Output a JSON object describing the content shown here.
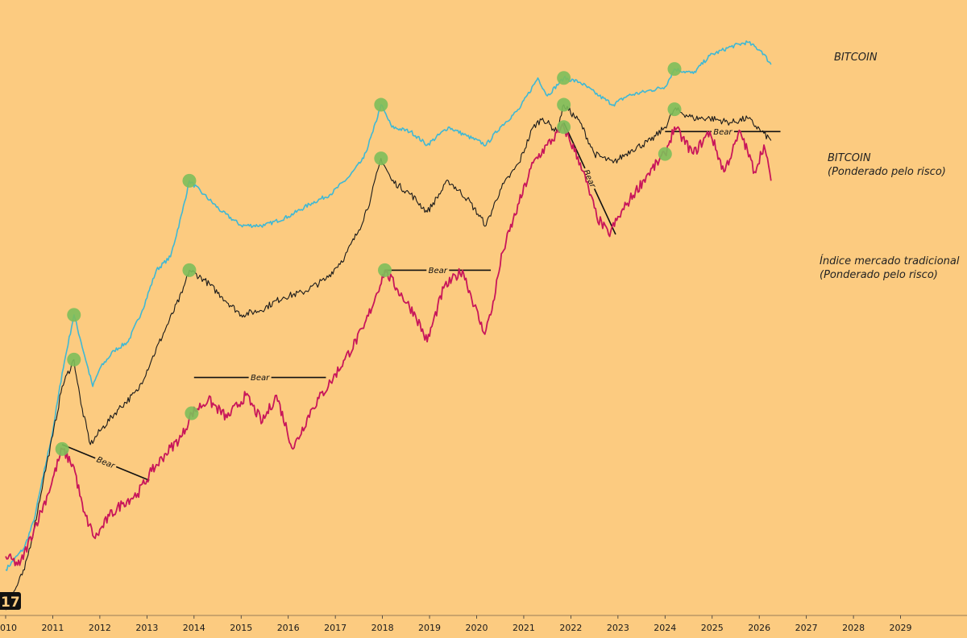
{
  "colors": {
    "background": "#FCCB80",
    "bitcoin": "#3FB8D4",
    "bitcoin_risk": "#1a1a1a",
    "traditional": "#C8165A",
    "marker": "#7DBE5A"
  },
  "chart_data": {
    "type": "line",
    "title": "",
    "xlabel": "",
    "ylabel": "",
    "xlim": [
      2010,
      2029.6
    ],
    "y_scale": "log (relative, arbitrary units)",
    "x_ticks": [
      "2010",
      "2011",
      "2012",
      "2013",
      "2014",
      "2015",
      "2016",
      "2017",
      "2018",
      "2019",
      "2020",
      "2021",
      "2022",
      "2023",
      "2024",
      "2025",
      "2026",
      "2027",
      "2028",
      "2029"
    ],
    "legend": [
      {
        "series": "bitcoin",
        "lines": [
          "BITCOIN"
        ]
      },
      {
        "series": "bitcoin_risk",
        "lines": [
          "BITCOIN",
          "(Ponderado pelo risco)"
        ]
      },
      {
        "series": "traditional",
        "lines": [
          "Índice mercado tradicional",
          "(Ponderado pelo risco)"
        ]
      }
    ],
    "series": [
      {
        "name": "BITCOIN",
        "key": "bitcoin",
        "points": [
          [
            2010.0,
            5
          ],
          [
            2010.4,
            10
          ],
          [
            2010.6,
            16
          ],
          [
            2010.8,
            26
          ],
          [
            2011.0,
            36
          ],
          [
            2011.2,
            49
          ],
          [
            2011.45,
            62
          ],
          [
            2011.6,
            56
          ],
          [
            2011.85,
            46
          ],
          [
            2012.0,
            50
          ],
          [
            2012.3,
            54
          ],
          [
            2012.6,
            56
          ],
          [
            2012.9,
            63
          ],
          [
            2013.2,
            72
          ],
          [
            2013.5,
            75
          ],
          [
            2013.75,
            85
          ],
          [
            2013.9,
            92
          ],
          [
            2014.2,
            89
          ],
          [
            2014.6,
            85
          ],
          [
            2015.0,
            82
          ],
          [
            2015.5,
            82
          ],
          [
            2016.0,
            84
          ],
          [
            2016.5,
            87
          ],
          [
            2016.9,
            89
          ],
          [
            2017.3,
            93
          ],
          [
            2017.6,
            97
          ],
          [
            2017.8,
            103
          ],
          [
            2017.97,
            109
          ],
          [
            2018.2,
            104
          ],
          [
            2018.6,
            103
          ],
          [
            2018.95,
            100
          ],
          [
            2019.4,
            104
          ],
          [
            2019.8,
            102
          ],
          [
            2020.2,
            100
          ],
          [
            2020.5,
            104
          ],
          [
            2020.9,
            108
          ],
          [
            2021.3,
            115
          ],
          [
            2021.5,
            111
          ],
          [
            2021.85,
            115
          ],
          [
            2022.2,
            114
          ],
          [
            2022.6,
            111
          ],
          [
            2022.9,
            109
          ],
          [
            2023.2,
            111
          ],
          [
            2023.6,
            112
          ],
          [
            2024.0,
            113
          ],
          [
            2024.2,
            117
          ],
          [
            2024.6,
            116
          ],
          [
            2024.95,
            120
          ],
          [
            2025.4,
            122
          ],
          [
            2025.75,
            123
          ],
          [
            2026.05,
            121
          ],
          [
            2026.25,
            118
          ]
        ]
      },
      {
        "name": "BITCOIN (Ponderado pelo risco)",
        "key": "bitcoin_risk",
        "points": [
          [
            2010.0,
            -4
          ],
          [
            2010.4,
            5
          ],
          [
            2010.6,
            14
          ],
          [
            2010.8,
            25
          ],
          [
            2011.0,
            35
          ],
          [
            2011.2,
            46
          ],
          [
            2011.45,
            52
          ],
          [
            2011.6,
            42
          ],
          [
            2011.8,
            33
          ],
          [
            2012.0,
            36
          ],
          [
            2012.4,
            41
          ],
          [
            2012.8,
            45
          ],
          [
            2013.1,
            52
          ],
          [
            2013.4,
            59
          ],
          [
            2013.75,
            67
          ],
          [
            2013.9,
            72
          ],
          [
            2014.2,
            70
          ],
          [
            2014.6,
            66
          ],
          [
            2015.0,
            62
          ],
          [
            2015.4,
            63
          ],
          [
            2015.9,
            66
          ],
          [
            2016.3,
            67
          ],
          [
            2016.8,
            70
          ],
          [
            2017.2,
            75
          ],
          [
            2017.5,
            81
          ],
          [
            2017.75,
            88
          ],
          [
            2017.97,
            97
          ],
          [
            2018.2,
            92
          ],
          [
            2018.6,
            89
          ],
          [
            2018.95,
            85
          ],
          [
            2019.4,
            92
          ],
          [
            2019.8,
            88
          ],
          [
            2020.2,
            82
          ],
          [
            2020.5,
            90
          ],
          [
            2020.9,
            96
          ],
          [
            2021.2,
            104
          ],
          [
            2021.4,
            106
          ],
          [
            2021.7,
            103
          ],
          [
            2021.85,
            109
          ],
          [
            2022.2,
            105
          ],
          [
            2022.5,
            98
          ],
          [
            2022.9,
            96
          ],
          [
            2023.3,
            99
          ],
          [
            2023.7,
            101
          ],
          [
            2024.0,
            104
          ],
          [
            2024.2,
            108
          ],
          [
            2024.6,
            106
          ],
          [
            2024.95,
            106
          ],
          [
            2025.4,
            105
          ],
          [
            2025.75,
            106
          ],
          [
            2026.05,
            103
          ],
          [
            2026.25,
            101
          ]
        ]
      },
      {
        "name": "Índice mercado tradicional (Ponderado pelo risco)",
        "key": "traditional",
        "points": [
          [
            2010.0,
            8
          ],
          [
            2010.3,
            6
          ],
          [
            2010.6,
            14
          ],
          [
            2010.9,
            22
          ],
          [
            2011.2,
            32
          ],
          [
            2011.45,
            28
          ],
          [
            2011.65,
            18
          ],
          [
            2011.9,
            12
          ],
          [
            2012.2,
            17
          ],
          [
            2012.5,
            20
          ],
          [
            2012.8,
            22
          ],
          [
            2013.1,
            27
          ],
          [
            2013.4,
            31
          ],
          [
            2013.75,
            35
          ],
          [
            2013.95,
            40
          ],
          [
            2014.3,
            43
          ],
          [
            2014.7,
            39
          ],
          [
            2015.1,
            44
          ],
          [
            2015.45,
            38
          ],
          [
            2015.75,
            44
          ],
          [
            2016.1,
            32
          ],
          [
            2016.5,
            41
          ],
          [
            2016.9,
            47
          ],
          [
            2017.2,
            52
          ],
          [
            2017.6,
            59
          ],
          [
            2017.85,
            66
          ],
          [
            2018.05,
            72
          ],
          [
            2018.3,
            68
          ],
          [
            2018.7,
            62
          ],
          [
            2018.95,
            56
          ],
          [
            2019.3,
            68
          ],
          [
            2019.7,
            72
          ],
          [
            2020.15,
            58
          ],
          [
            2020.3,
            62
          ],
          [
            2020.55,
            76
          ],
          [
            2020.9,
            87
          ],
          [
            2021.2,
            96
          ],
          [
            2021.5,
            100
          ],
          [
            2021.85,
            104
          ],
          [
            2022.2,
            96
          ],
          [
            2022.55,
            84
          ],
          [
            2022.8,
            80
          ],
          [
            2023.2,
            87
          ],
          [
            2023.6,
            93
          ],
          [
            2024.0,
            98
          ],
          [
            2024.2,
            104
          ],
          [
            2024.6,
            98
          ],
          [
            2024.95,
            103
          ],
          [
            2025.25,
            94
          ],
          [
            2025.6,
            103
          ],
          [
            2025.9,
            94
          ],
          [
            2026.1,
            100
          ],
          [
            2026.25,
            92
          ]
        ]
      }
    ],
    "markers": [
      {
        "series": "bitcoin",
        "x": 2011.45,
        "y": 62
      },
      {
        "series": "bitcoin",
        "x": 2013.9,
        "y": 92
      },
      {
        "series": "bitcoin",
        "x": 2017.97,
        "y": 109
      },
      {
        "series": "bitcoin",
        "x": 2021.85,
        "y": 115
      },
      {
        "series": "bitcoin",
        "x": 2024.2,
        "y": 117
      },
      {
        "series": "bitcoin_risk",
        "x": 2011.45,
        "y": 52
      },
      {
        "series": "bitcoin_risk",
        "x": 2013.9,
        "y": 72
      },
      {
        "series": "bitcoin_risk",
        "x": 2017.97,
        "y": 97
      },
      {
        "series": "bitcoin_risk",
        "x": 2021.85,
        "y": 109
      },
      {
        "series": "bitcoin_risk",
        "x": 2024.2,
        "y": 108
      },
      {
        "series": "traditional",
        "x": 2011.2,
        "y": 32
      },
      {
        "series": "traditional",
        "x": 2013.95,
        "y": 40
      },
      {
        "series": "traditional",
        "x": 2018.05,
        "y": 72
      },
      {
        "series": "traditional",
        "x": 2021.85,
        "y": 104
      },
      {
        "series": "traditional",
        "x": 2024.0,
        "y": 98
      }
    ],
    "annotations": [
      {
        "label": "Bear",
        "x1": 2011.2,
        "y1": 33,
        "x2": 2013.05,
        "y2": 25
      },
      {
        "label": "Bear",
        "x1": 2014.0,
        "y1": 48,
        "x2": 2016.8,
        "y2": 48
      },
      {
        "label": "Bear",
        "x1": 2018.05,
        "y1": 72,
        "x2": 2020.3,
        "y2": 72
      },
      {
        "label": "Bear",
        "x1": 2021.85,
        "y1": 105,
        "x2": 2022.95,
        "y2": 80
      },
      {
        "label": "Bear",
        "x1": 2024.0,
        "y1": 103,
        "x2": 2026.45,
        "y2": 103
      }
    ],
    "corner_label": "17"
  }
}
